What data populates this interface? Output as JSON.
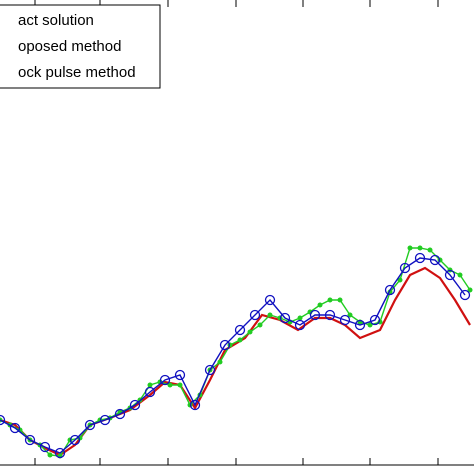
{
  "chart_data": {
    "type": "line",
    "xlim": [
      0,
      474
    ],
    "ylim": [
      0,
      465
    ],
    "xticks": [
      35,
      100,
      168,
      236,
      303,
      370,
      438
    ],
    "legend": "upper left",
    "series": [
      {
        "name": "act solution",
        "color": "#d01010",
        "marker": "none",
        "x": [
          0,
          15,
          30,
          45,
          60,
          75,
          90,
          110,
          130,
          150,
          165,
          180,
          195,
          210,
          225,
          245,
          262,
          280,
          298,
          315,
          330,
          345,
          360,
          380,
          395,
          410,
          425,
          440,
          455,
          470
        ],
        "values": [
          45,
          40,
          25,
          17,
          10,
          20,
          40,
          47,
          55,
          70,
          83,
          80,
          57,
          85,
          115,
          127,
          150,
          145,
          135,
          147,
          147,
          140,
          127,
          135,
          165,
          190,
          197,
          187,
          165,
          140
        ]
      },
      {
        "name": "oposed method",
        "color": "#1010c0",
        "marker": "circle",
        "x": [
          0,
          15,
          30,
          45,
          60,
          75,
          90,
          105,
          120,
          135,
          150,
          165,
          180,
          195,
          210,
          225,
          240,
          255,
          270,
          285,
          300,
          315,
          330,
          345,
          360,
          375,
          390,
          405,
          420,
          435,
          450,
          465
        ],
        "values": [
          45,
          37,
          25,
          18,
          12,
          25,
          40,
          45,
          51,
          60,
          73,
          85,
          90,
          60,
          95,
          120,
          135,
          150,
          165,
          147,
          140,
          150,
          150,
          145,
          140,
          145,
          175,
          197,
          207,
          205,
          190,
          170
        ]
      },
      {
        "name": "ock pulse method",
        "color": "#22cc22",
        "marker": "dot",
        "x": [
          0,
          10,
          20,
          30,
          40,
          50,
          60,
          70,
          80,
          90,
          100,
          110,
          120,
          130,
          140,
          150,
          160,
          170,
          180,
          190,
          200,
          210,
          220,
          230,
          240,
          250,
          260,
          270,
          280,
          290,
          300,
          310,
          320,
          330,
          340,
          350,
          360,
          370,
          380,
          390,
          400,
          410,
          420,
          430,
          440,
          450,
          460,
          470
        ],
        "values": [
          45,
          40,
          35,
          25,
          20,
          10,
          9,
          25,
          27,
          40,
          45,
          47,
          53,
          57,
          65,
          80,
          83,
          80,
          80,
          60,
          70,
          95,
          103,
          120,
          125,
          133,
          140,
          150,
          147,
          143,
          147,
          153,
          160,
          165,
          165,
          150,
          143,
          140,
          143,
          173,
          185,
          217,
          217,
          215,
          205,
          195,
          190,
          175
        ]
      }
    ]
  }
}
